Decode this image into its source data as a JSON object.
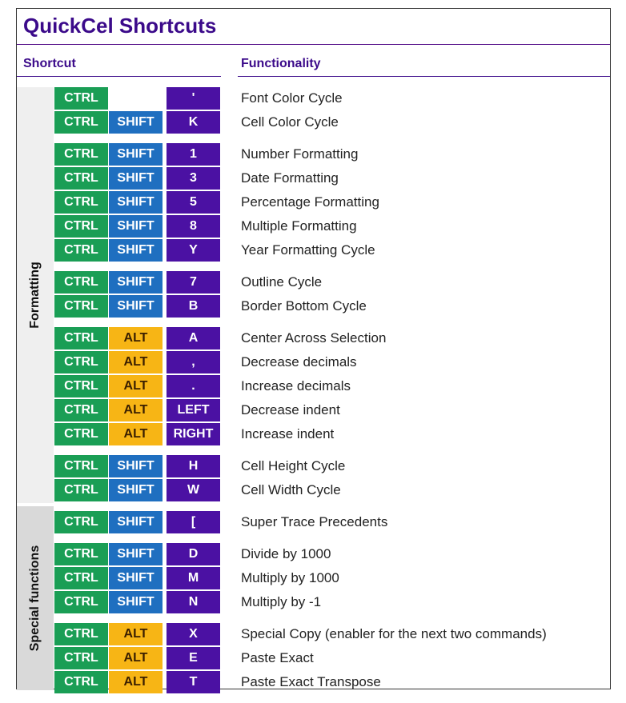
{
  "title": "QuickCel Shortcuts",
  "headers": {
    "shortcut": "Shortcut",
    "functionality": "Functionality"
  },
  "groups": {
    "formatting": "Formatting",
    "special": "Special functions"
  },
  "rows": [
    {
      "k1": "CTRL",
      "k2": "",
      "k3": "'",
      "func": "Font Color Cycle"
    },
    {
      "k1": "CTRL",
      "k2": "SHIFT",
      "k3": "K",
      "func": "Cell Color Cycle"
    },
    {
      "k1": "CTRL",
      "k2": "SHIFT",
      "k3": "1",
      "func": "Number Formatting"
    },
    {
      "k1": "CTRL",
      "k2": "SHIFT",
      "k3": "3",
      "func": "Date Formatting"
    },
    {
      "k1": "CTRL",
      "k2": "SHIFT",
      "k3": "5",
      "func": "Percentage Formatting"
    },
    {
      "k1": "CTRL",
      "k2": "SHIFT",
      "k3": "8",
      "func": "Multiple Formatting"
    },
    {
      "k1": "CTRL",
      "k2": "SHIFT",
      "k3": "Y",
      "func": "Year Formatting Cycle"
    },
    {
      "k1": "CTRL",
      "k2": "SHIFT",
      "k3": "7",
      "func": "Outline Cycle"
    },
    {
      "k1": "CTRL",
      "k2": "SHIFT",
      "k3": "B",
      "func": "Border Bottom Cycle"
    },
    {
      "k1": "CTRL",
      "k2": "ALT",
      "k3": "A",
      "func": "Center Across Selection"
    },
    {
      "k1": "CTRL",
      "k2": "ALT",
      "k3": ",",
      "func": "Decrease decimals"
    },
    {
      "k1": "CTRL",
      "k2": "ALT",
      "k3": ".",
      "func": "Increase decimals"
    },
    {
      "k1": "CTRL",
      "k2": "ALT",
      "k3": "LEFT",
      "func": "Decrease indent"
    },
    {
      "k1": "CTRL",
      "k2": "ALT",
      "k3": "RIGHT",
      "func": "Increase indent"
    },
    {
      "k1": "CTRL",
      "k2": "SHIFT",
      "k3": "H",
      "func": "Cell Height Cycle"
    },
    {
      "k1": "CTRL",
      "k2": "SHIFT",
      "k3": "W",
      "func": "Cell Width Cycle"
    },
    {
      "k1": "CTRL",
      "k2": "SHIFT",
      "k3": "[",
      "func": "Super Trace Precedents"
    },
    {
      "k1": "CTRL",
      "k2": "SHIFT",
      "k3": "D",
      "func": "Divide by 1000"
    },
    {
      "k1": "CTRL",
      "k2": "SHIFT",
      "k3": "M",
      "func": "Multiply by 1000"
    },
    {
      "k1": "CTRL",
      "k2": "SHIFT",
      "k3": "N",
      "func": "Multiply by -1"
    },
    {
      "k1": "CTRL",
      "k2": "ALT",
      "k3": "X",
      "func": "Special Copy (enabler for the next two commands)"
    },
    {
      "k1": "CTRL",
      "k2": "ALT",
      "k3": "E",
      "func": "Paste Exact"
    },
    {
      "k1": "CTRL",
      "k2": "ALT",
      "k3": "T",
      "func": "Paste Exact Transpose"
    }
  ],
  "colors": {
    "ctrl": "#1a9e55",
    "shift": "#1f6fc0",
    "alt": "#f7b515",
    "key": "#4b11a3",
    "title": "#3b0a8a"
  }
}
